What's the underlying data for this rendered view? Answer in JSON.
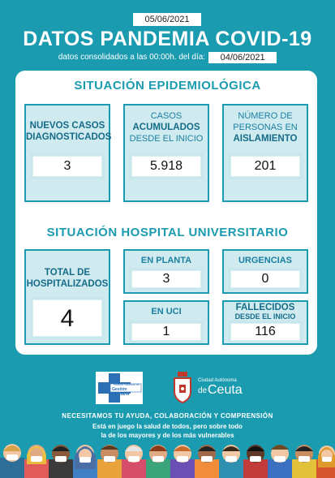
{
  "report_date": "05/06/2021",
  "title": "DATOS PANDEMIA COVID-19",
  "subtitle": "datos consolidados a las 00:00h. del día:",
  "data_date": "04/06/2021",
  "epidemiological": {
    "heading": "SITUACIÓN EPIDEMIOLÓGICA",
    "new_cases": {
      "line1": "NUEVOS CASOS",
      "line2": "DIAGNOSTICADOS",
      "value": "3"
    },
    "cumulative": {
      "line1": "CASOS",
      "line2": "ACUMULADOS",
      "line3": "DESDE EL INICIO",
      "value": "5.918"
    },
    "isolation": {
      "line1": "NÚMERO DE",
      "line2": "PERSONAS EN",
      "line3": "AISLAMIENTO",
      "value": "201"
    }
  },
  "hospital": {
    "heading": "SITUACIÓN HOSPITAL UNIVERSITARIO",
    "total": {
      "line1": "TOTAL DE",
      "line2": "HOSPITALIZADOS",
      "value": "4"
    },
    "ward": {
      "label": "EN PLANTA",
      "value": "3"
    },
    "emergency": {
      "label": "URGENCIAS",
      "value": "0"
    },
    "icu": {
      "label": "EN UCI",
      "value": "1"
    },
    "deaths": {
      "line1": "FALLECIDOS",
      "line2": "DESDE EL INICIO",
      "value": "116"
    }
  },
  "logos": {
    "ingesa_small": "Instituto Nacional de",
    "ingesa_main": "Gestión Sanitaria",
    "ceuta_small": "Ciudad Autónoma",
    "ceuta_de": "de",
    "ceuta_main": "Ceuta"
  },
  "footer": {
    "line1": "NECESITAMOS TU AYUDA, COLABORACIÓN  Y COMPRENSIÓN",
    "line2": "Está en juego la salud de todos, pero sobre todo",
    "line3": "la de los mayores y de los más vulnerables"
  },
  "colors": {
    "background": "#1a9bb0",
    "accent_text": "#1a7fa0",
    "card_fill": "#d0ebf0"
  }
}
